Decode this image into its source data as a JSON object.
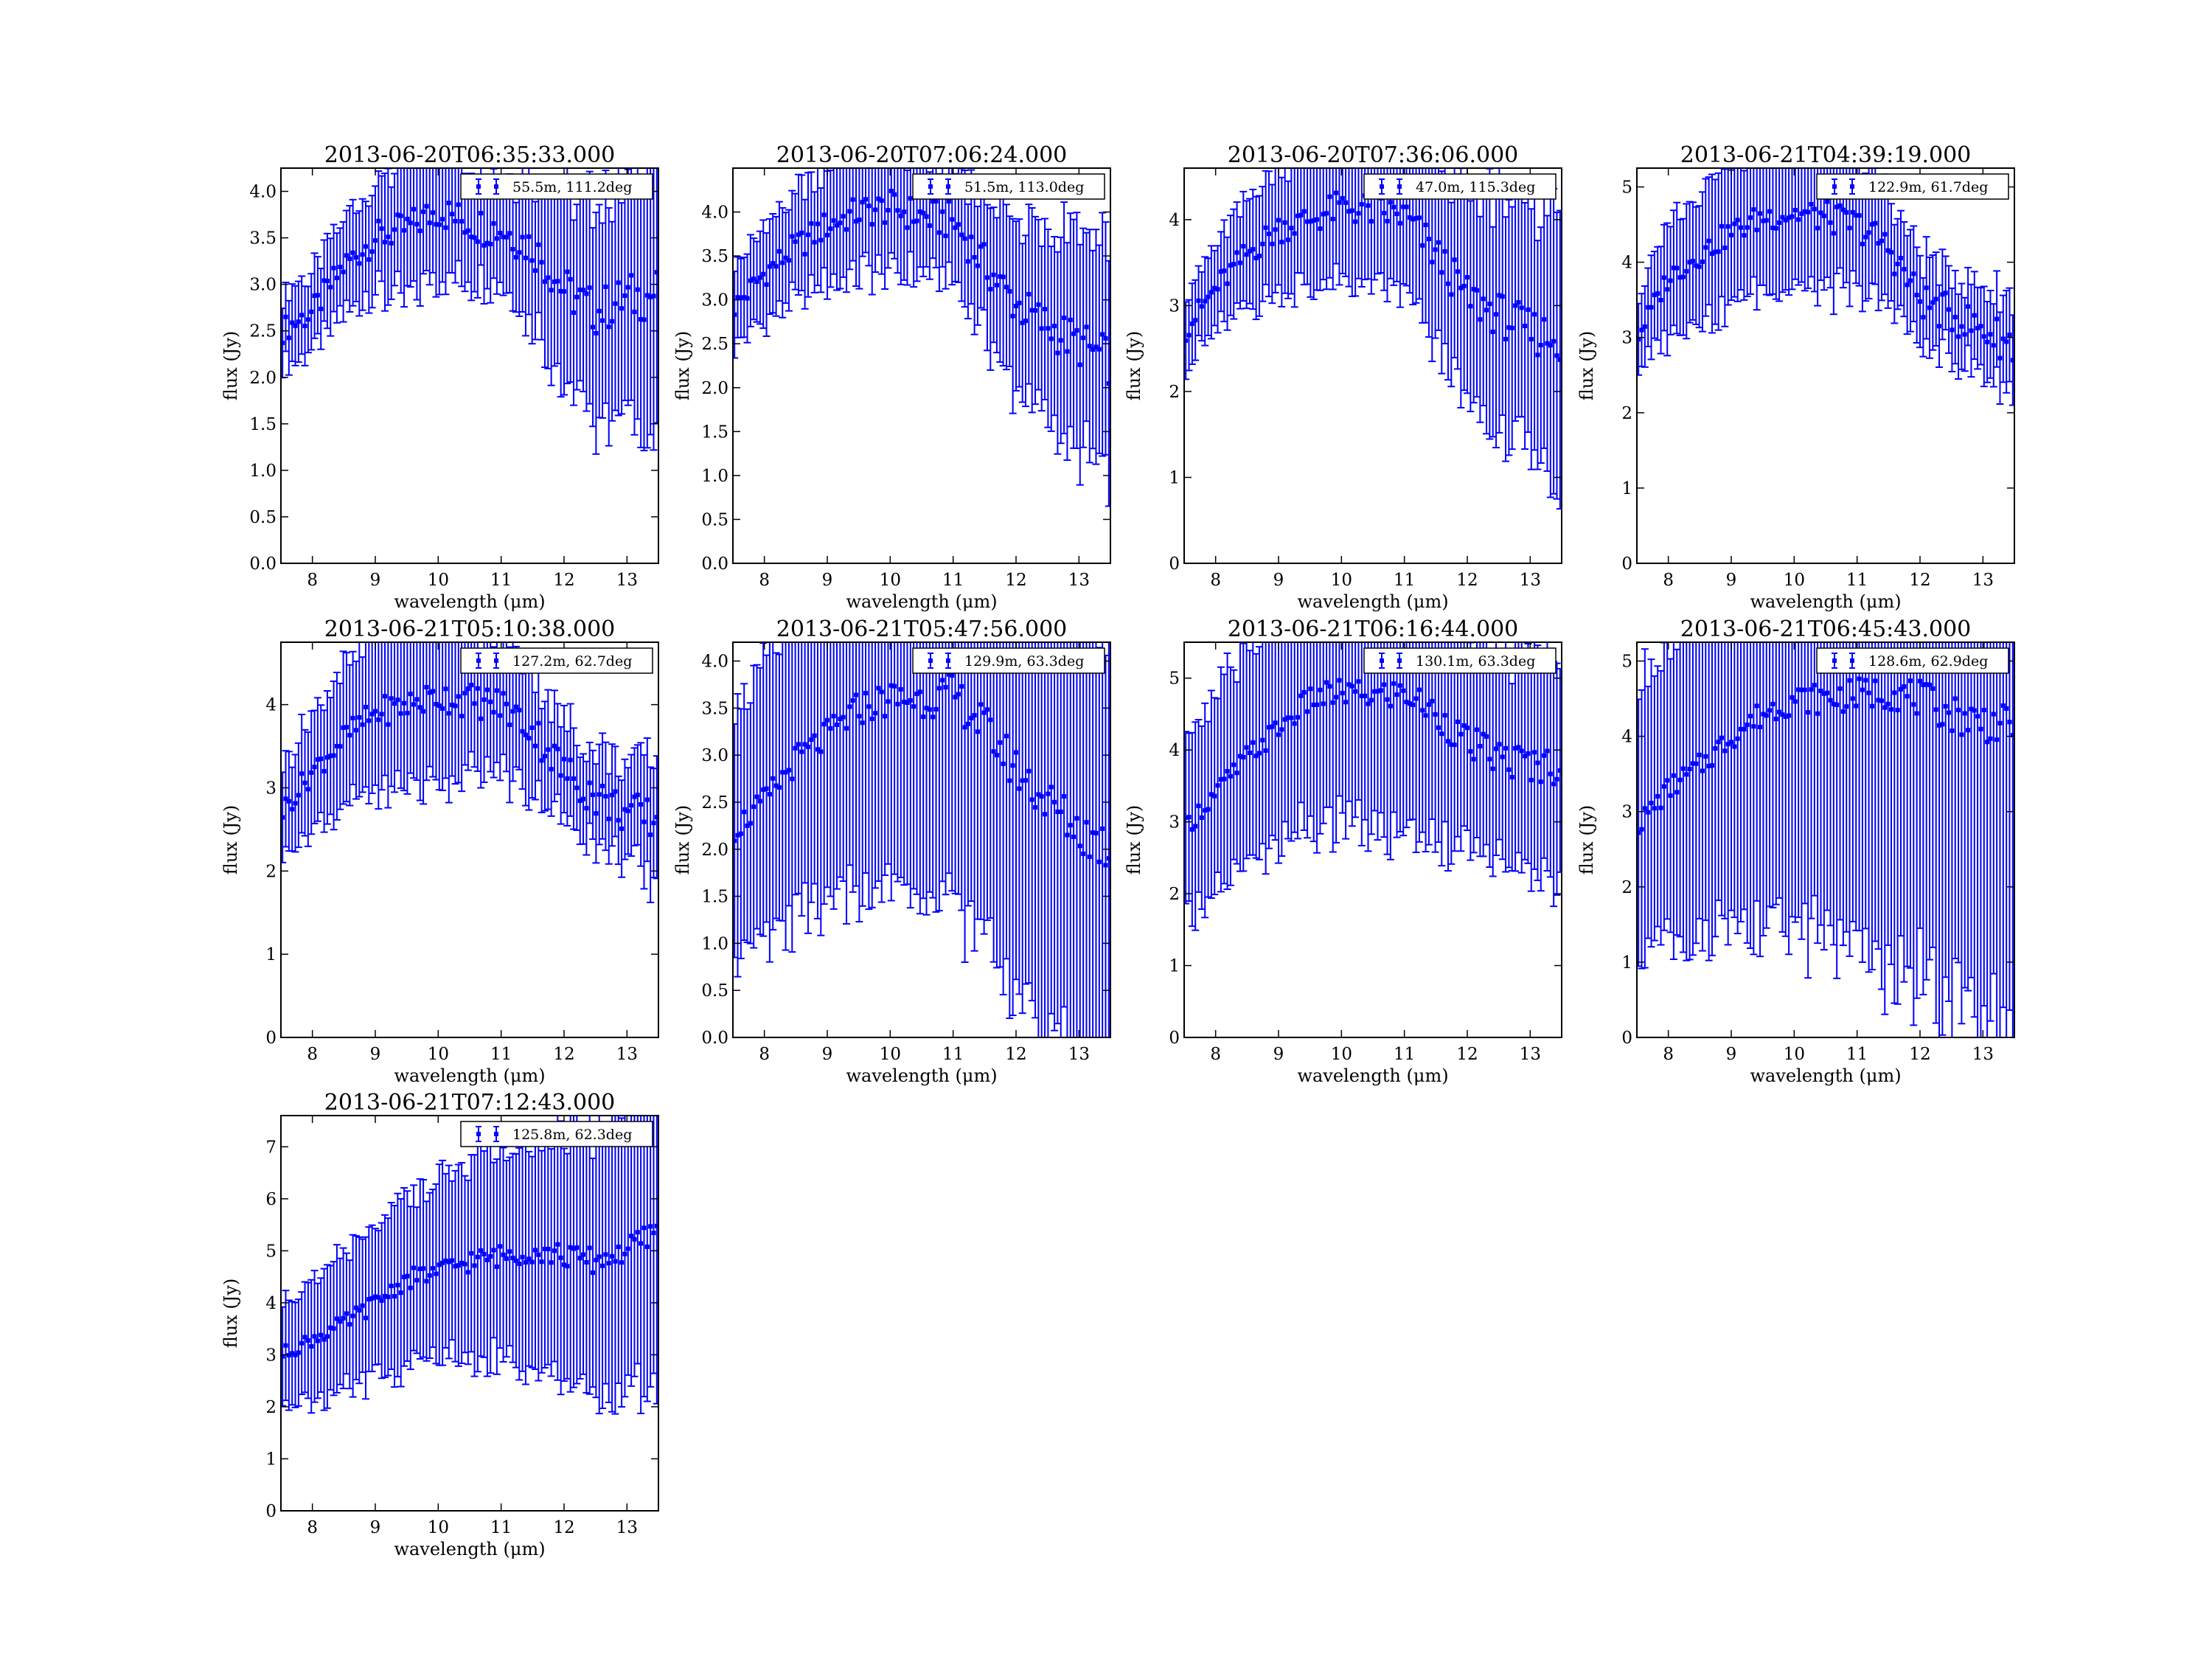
{
  "chart_data": [
    {
      "type": "scatter",
      "title": "2013-06-20T06:35:33.000",
      "xlabel": "wavelength (μm)",
      "ylabel": "flux (Jy)",
      "xlim": [
        7.5,
        13.5
      ],
      "ylim": [
        0,
        4.25
      ],
      "xticks": [
        8,
        9,
        10,
        11,
        12,
        13
      ],
      "yticks": [
        0.0,
        0.5,
        1.0,
        1.5,
        2.0,
        2.5,
        3.0,
        3.5,
        4.0
      ],
      "ytick_format": "fixed1",
      "legend": "55.5m, 111.2deg",
      "legend_position": "top-right",
      "error_bars": true,
      "series": [
        {
          "x": [
            7.5,
            8.0,
            8.5,
            9.0,
            9.5,
            10.0,
            10.5,
            11.0,
            11.5,
            12.0,
            12.5,
            13.0,
            13.5
          ],
          "y": [
            2.5,
            2.7,
            3.2,
            3.5,
            3.6,
            3.8,
            3.65,
            3.6,
            3.4,
            2.95,
            2.7,
            2.85,
            2.9
          ],
          "err": [
            0.35,
            0.4,
            0.5,
            0.6,
            0.75,
            0.7,
            0.6,
            0.55,
            0.8,
            1.1,
            1.2,
            1.3,
            1.5
          ]
        }
      ]
    },
    {
      "type": "scatter",
      "title": "2013-06-20T07:06:24.000",
      "xlabel": "wavelength (μm)",
      "ylabel": "flux (Jy)",
      "xlim": [
        7.5,
        13.5
      ],
      "ylim": [
        0,
        4.5
      ],
      "xticks": [
        8,
        9,
        10,
        11,
        12,
        13
      ],
      "yticks": [
        0.0,
        0.5,
        1.0,
        1.5,
        2.0,
        2.5,
        3.0,
        3.5,
        4.0
      ],
      "ytick_format": "fixed1",
      "legend": "51.5m, 113.0deg",
      "legend_position": "top-right",
      "error_bars": true,
      "series": [
        {
          "x": [
            7.5,
            8.0,
            8.5,
            9.0,
            9.5,
            10.0,
            10.5,
            11.0,
            11.5,
            12.0,
            12.5,
            13.0,
            13.5
          ],
          "y": [
            2.9,
            3.3,
            3.6,
            3.85,
            4.0,
            4.05,
            3.95,
            3.9,
            3.4,
            2.95,
            2.7,
            2.5,
            2.3
          ],
          "err": [
            0.45,
            0.55,
            0.6,
            0.65,
            0.7,
            0.75,
            0.65,
            0.7,
            0.8,
            1.0,
            1.1,
            1.2,
            1.3
          ]
        }
      ]
    },
    {
      "type": "scatter",
      "title": "2013-06-20T07:36:06.000",
      "xlabel": "wavelength (μm)",
      "ylabel": "flux (Jy)",
      "xlim": [
        7.5,
        13.5
      ],
      "ylim": [
        0,
        4.6
      ],
      "xticks": [
        8,
        9,
        10,
        11,
        12,
        13
      ],
      "yticks": [
        0,
        1,
        2,
        3,
        4
      ],
      "ytick_format": "int",
      "legend": "47.0m, 115.3deg",
      "legend_position": "top-right",
      "error_bars": true,
      "series": [
        {
          "x": [
            7.5,
            8.0,
            8.5,
            9.0,
            9.5,
            10.0,
            10.5,
            11.0,
            11.5,
            12.0,
            12.5,
            13.0,
            13.5
          ],
          "y": [
            2.7,
            3.2,
            3.6,
            3.9,
            4.0,
            4.15,
            4.1,
            4.05,
            3.6,
            3.1,
            2.9,
            2.7,
            2.6
          ],
          "err": [
            0.4,
            0.5,
            0.6,
            0.7,
            0.8,
            0.9,
            0.85,
            0.9,
            1.1,
            1.3,
            1.4,
            1.5,
            1.6
          ]
        }
      ]
    },
    {
      "type": "scatter",
      "title": "2013-06-21T04:39:19.000",
      "xlabel": "wavelength (μm)",
      "ylabel": "flux (Jy)",
      "xlim": [
        7.5,
        13.5
      ],
      "ylim": [
        0,
        5.25
      ],
      "xticks": [
        8,
        9,
        10,
        11,
        12,
        13
      ],
      "yticks": [
        0,
        1,
        2,
        3,
        4,
        5
      ],
      "ytick_format": "int",
      "legend": "122.9m, 61.7deg",
      "legend_position": "top-right",
      "error_bars": true,
      "series": [
        {
          "x": [
            7.5,
            8.0,
            8.5,
            9.0,
            9.5,
            10.0,
            10.5,
            11.0,
            11.5,
            12.0,
            12.5,
            13.0,
            13.5
          ],
          "y": [
            3.0,
            3.8,
            4.1,
            4.4,
            4.6,
            4.65,
            4.6,
            4.5,
            4.2,
            3.5,
            3.3,
            3.1,
            2.9
          ],
          "err": [
            0.5,
            0.8,
            0.9,
            0.95,
            1.0,
            1.0,
            0.95,
            0.9,
            0.75,
            0.6,
            0.55,
            0.6,
            0.7
          ]
        }
      ]
    },
    {
      "type": "scatter",
      "title": "2013-06-21T05:10:38.000",
      "xlabel": "wavelength (μm)",
      "ylabel": "flux (Jy)",
      "xlim": [
        7.5,
        13.5
      ],
      "ylim": [
        0,
        4.75
      ],
      "xticks": [
        8,
        9,
        10,
        11,
        12,
        13
      ],
      "yticks": [
        0,
        1,
        2,
        3,
        4
      ],
      "ytick_format": "int",
      "legend": "127.2m, 62.7deg",
      "legend_position": "top-right",
      "error_bars": true,
      "series": [
        {
          "x": [
            7.5,
            8.0,
            8.5,
            9.0,
            9.5,
            10.0,
            10.5,
            11.0,
            11.5,
            12.0,
            12.5,
            13.0,
            13.5
          ],
          "y": [
            2.7,
            3.2,
            3.6,
            3.9,
            4.0,
            4.1,
            4.05,
            4.0,
            3.7,
            3.2,
            2.9,
            2.7,
            2.6
          ],
          "err": [
            0.5,
            0.7,
            0.85,
            0.95,
            1.0,
            1.0,
            0.9,
            0.85,
            0.75,
            0.6,
            0.55,
            0.6,
            0.8
          ]
        }
      ]
    },
    {
      "type": "scatter",
      "title": "2013-06-21T05:47:56.000",
      "xlabel": "wavelength (μm)",
      "ylabel": "flux (Jy)",
      "xlim": [
        7.5,
        13.5
      ],
      "ylim": [
        0,
        4.2
      ],
      "xticks": [
        8,
        9,
        10,
        11,
        12,
        13
      ],
      "yticks": [
        0.0,
        0.5,
        1.0,
        1.5,
        2.0,
        2.5,
        3.0,
        3.5,
        4.0
      ],
      "ytick_format": "fixed1",
      "legend": "129.9m, 63.3deg",
      "legend_position": "top-right",
      "error_bars": true,
      "series": [
        {
          "x": [
            7.5,
            8.0,
            8.5,
            9.0,
            9.5,
            10.0,
            10.5,
            11.0,
            11.5,
            12.0,
            12.5,
            13.0,
            13.5
          ],
          "y": [
            2.2,
            2.5,
            2.95,
            3.2,
            3.5,
            3.6,
            3.6,
            3.65,
            3.3,
            2.85,
            2.5,
            2.2,
            2.0
          ],
          "err": [
            1.3,
            1.6,
            1.7,
            1.8,
            1.9,
            2.0,
            2.1,
            2.2,
            2.3,
            2.4,
            2.5,
            2.5,
            2.5
          ]
        }
      ]
    },
    {
      "type": "scatter",
      "title": "2013-06-21T06:16:44.000",
      "xlabel": "wavelength (μm)",
      "ylabel": "flux (Jy)",
      "xlim": [
        7.5,
        13.5
      ],
      "ylim": [
        0,
        5.5
      ],
      "xticks": [
        8,
        9,
        10,
        11,
        12,
        13
      ],
      "yticks": [
        0,
        1,
        2,
        3,
        4,
        5
      ],
      "ytick_format": "int",
      "legend": "130.1m, 63.3deg",
      "legend_position": "top-right",
      "error_bars": true,
      "series": [
        {
          "x": [
            7.5,
            8.0,
            8.5,
            9.0,
            9.5,
            10.0,
            10.5,
            11.0,
            11.5,
            12.0,
            12.5,
            13.0,
            13.5
          ],
          "y": [
            2.9,
            3.4,
            3.9,
            4.3,
            4.7,
            4.8,
            4.75,
            4.8,
            4.5,
            4.1,
            3.9,
            3.8,
            3.8
          ],
          "err": [
            1.2,
            1.4,
            1.5,
            1.6,
            1.8,
            1.9,
            1.9,
            1.9,
            1.8,
            1.5,
            1.5,
            1.5,
            1.6
          ]
        }
      ]
    },
    {
      "type": "scatter",
      "title": "2013-06-21T06:45:43.000",
      "xlabel": "wavelength (μm)",
      "ylabel": "flux (Jy)",
      "xlim": [
        7.5,
        13.5
      ],
      "ylim": [
        0,
        5.25
      ],
      "xticks": [
        8,
        9,
        10,
        11,
        12,
        13
      ],
      "yticks": [
        0,
        1,
        2,
        3,
        4,
        5
      ],
      "ytick_format": "int",
      "legend": "128.6m, 62.9deg",
      "legend_position": "top-right",
      "error_bars": true,
      "series": [
        {
          "x": [
            7.5,
            8.0,
            8.5,
            9.0,
            9.5,
            10.0,
            10.5,
            11.0,
            11.5,
            12.0,
            12.5,
            13.0,
            13.5
          ],
          "y": [
            2.8,
            3.3,
            3.6,
            4.0,
            4.3,
            4.5,
            4.5,
            4.55,
            4.6,
            4.5,
            4.3,
            4.2,
            4.1
          ],
          "err": [
            1.8,
            2.1,
            2.3,
            2.5,
            2.8,
            3.0,
            3.2,
            3.4,
            3.6,
            3.8,
            3.9,
            4.0,
            4.0
          ]
        }
      ]
    },
    {
      "type": "scatter",
      "title": "2013-06-21T07:12:43.000",
      "xlabel": "wavelength (μm)",
      "ylabel": "flux (Jy)",
      "xlim": [
        7.5,
        13.5
      ],
      "ylim": [
        0,
        7.6
      ],
      "xticks": [
        8,
        9,
        10,
        11,
        12,
        13
      ],
      "yticks": [
        0,
        1,
        2,
        3,
        4,
        5,
        6,
        7
      ],
      "ytick_format": "int",
      "legend": "125.8m, 62.3deg",
      "legend_position": "top-right",
      "error_bars": true,
      "series": [
        {
          "x": [
            7.5,
            8.0,
            8.5,
            9.0,
            9.5,
            10.0,
            10.5,
            11.0,
            11.5,
            12.0,
            12.5,
            13.0,
            13.5
          ],
          "y": [
            3.0,
            3.3,
            3.6,
            4.0,
            4.45,
            4.6,
            4.8,
            4.9,
            5.0,
            4.9,
            4.8,
            5.0,
            5.4
          ],
          "err": [
            1.0,
            1.2,
            1.3,
            1.5,
            1.6,
            1.7,
            1.9,
            2.0,
            2.2,
            2.4,
            2.6,
            2.8,
            3.0
          ]
        }
      ]
    }
  ],
  "colors": {
    "series": "#0000ff",
    "axes": "#000000",
    "background": "#ffffff"
  }
}
